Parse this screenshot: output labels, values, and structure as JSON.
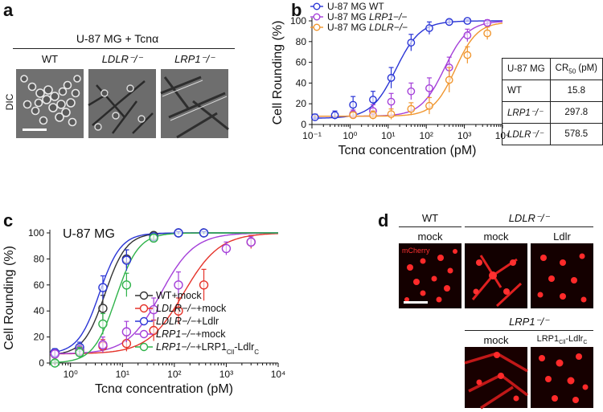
{
  "panel_a": {
    "letter": "a",
    "condition": "U-87 MG + Tcnα",
    "columns": [
      {
        "name": "WT",
        "italic": false
      },
      {
        "name": "LDLR⁻/⁻",
        "italic": true
      },
      {
        "name": "LRP1⁻/⁻",
        "italic": true
      }
    ],
    "row_label": "DIC"
  },
  "panel_b": {
    "letter": "b",
    "table": {
      "header": [
        "U-87 MG",
        "CR"
      ],
      "header_sub": "50",
      "header_unit": " (pM)",
      "rows": [
        [
          "WT",
          "15.8"
        ],
        [
          "LRP1⁻/⁻",
          "297.8"
        ],
        [
          "LDLR⁻/⁻",
          "578.5"
        ]
      ]
    }
  },
  "panel_c": {
    "letter": "c"
  },
  "panel_d": {
    "letter": "d",
    "group1_label": "WT",
    "group2_label": "LDLR⁻/⁻",
    "group3_label": "LRP1⁻/⁻",
    "top_columns": [
      "mock",
      "mock",
      "Ldlr"
    ],
    "bottom_columns": [
      "mock"
    ],
    "bottom_col2_main": "LRP1",
    "bottom_col2_sub1": "Cll",
    "bottom_col2_mid": "-Ldlr",
    "bottom_col2_sub2": "C",
    "overlay_label": "mCherry",
    "colors": {
      "fluor": "#ff2020",
      "background": "#120000"
    }
  },
  "chart_data": [
    {
      "type": "scatter",
      "panel": "b",
      "title": "",
      "xlabel": "Tcnα concentration (pM)",
      "ylabel": "Cell Rounding (%)",
      "xscale": "log",
      "xlim": [
        0.1,
        10000
      ],
      "ylim": [
        0,
        100
      ],
      "xticks": [
        "10⁻¹",
        "10⁰",
        "10¹",
        "10²",
        "10³",
        "10⁴"
      ],
      "yticks": [
        "0",
        "20",
        "40",
        "60",
        "80",
        "100"
      ],
      "legend_position": "top-left",
      "series": [
        {
          "name": "U-87 MG WT",
          "prefix": "U-87 MG ",
          "label": "WT",
          "italic": false,
          "color": "#2a35d6",
          "x": [
            0.12,
            0.4,
            1.2,
            4,
            12,
            40,
            120,
            400,
            1200
          ],
          "y": [
            7,
            9,
            19,
            24,
            45,
            79,
            93,
            99,
            100
          ],
          "err": [
            3,
            4,
            8,
            8,
            10,
            8,
            6,
            2,
            1
          ]
        },
        {
          "name": "U-87 MG LRP1−/−",
          "prefix": "U-87 MG ",
          "label": "LRP1−/−",
          "italic": true,
          "color": "#a43fd9",
          "x": [
            1.2,
            4,
            12,
            40,
            120,
            400,
            1200,
            4000
          ],
          "y": [
            10,
            13,
            22,
            32,
            35,
            55,
            86,
            98
          ],
          "err": [
            4,
            6,
            8,
            8,
            10,
            10,
            6,
            3
          ]
        },
        {
          "name": "U-87 MG LDLR−/−",
          "prefix": "U-87 MG ",
          "label": "LDLR−/−",
          "italic": true,
          "color": "#f0962f",
          "x": [
            1.2,
            4,
            12,
            40,
            120,
            400,
            1200,
            4000
          ],
          "y": [
            9,
            9,
            10,
            15,
            18,
            43,
            67,
            88
          ],
          "err": [
            3,
            4,
            5,
            6,
            8,
            12,
            8,
            6
          ]
        }
      ],
      "fits": [
        {
          "color": "#2a35d6",
          "ec50": 15.8,
          "bottom": 6,
          "top": 100,
          "hill": 1.35
        },
        {
          "color": "#a43fd9",
          "ec50": 297.8,
          "bottom": 8,
          "top": 100,
          "hill": 1.4
        },
        {
          "color": "#f0962f",
          "ec50": 578.5,
          "bottom": 8,
          "top": 99,
          "hill": 1.5
        }
      ]
    },
    {
      "type": "scatter",
      "panel": "c",
      "title": "U-87 MG",
      "xlabel": "Tcnα concentration (pM)",
      "ylabel": "Cell Rounding (%)",
      "xscale": "log",
      "xlim": [
        0.4,
        10000
      ],
      "ylim": [
        0,
        100
      ],
      "xticks": [
        "10⁰",
        "10¹",
        "10²",
        "10³",
        "10⁴"
      ],
      "yticks": [
        "0",
        "20",
        "40",
        "60",
        "80",
        "100"
      ],
      "legend_position": "bottom-right",
      "series": [
        {
          "name": "WT+mock",
          "color": "#333333",
          "parts": [
            {
              "t": "WT",
              "i": false
            },
            {
              "t": "+mock",
              "i": false
            }
          ],
          "x": [
            0.5,
            1.5,
            4.2,
            12,
            40,
            120,
            370
          ],
          "y": [
            8,
            10,
            42,
            80,
            98,
            100,
            100
          ],
          "err": [
            3,
            4,
            10,
            7,
            2,
            1,
            1
          ]
        },
        {
          "name": "LDLR−/−+mock",
          "color": "#e5332a",
          "parts": [
            {
              "t": "LDLR−/−",
              "i": true
            },
            {
              "t": "+mock",
              "i": false
            }
          ],
          "x": [
            0.5,
            1.5,
            4.2,
            12,
            40,
            120,
            370,
            3000
          ],
          "y": [
            7,
            9,
            13,
            15,
            25,
            40,
            60,
            93
          ],
          "err": [
            3,
            4,
            5,
            6,
            8,
            10,
            12,
            5
          ]
        },
        {
          "name": "LDLR−/−+Ldlr",
          "color": "#2a35d6",
          "parts": [
            {
              "t": "LDLR−/−",
              "i": true
            },
            {
              "t": "+Ldlr",
              "i": false
            }
          ],
          "x": [
            0.5,
            1.5,
            4.2,
            12,
            40,
            120,
            370
          ],
          "y": [
            8,
            12,
            58,
            79,
            97,
            100,
            100
          ],
          "err": [
            3,
            4,
            9,
            8,
            2,
            1,
            1
          ]
        },
        {
          "name": "LRP1−/−+mock",
          "color": "#a43fd9",
          "parts": [
            {
              "t": "LRP1−/−",
              "i": true
            },
            {
              "t": "+mock",
              "i": false
            }
          ],
          "x": [
            0.5,
            1.5,
            4.2,
            12,
            40,
            120,
            1000,
            3000
          ],
          "y": [
            7,
            9,
            14,
            24,
            41,
            60,
            88,
            93
          ],
          "err": [
            3,
            4,
            6,
            8,
            9,
            10,
            5,
            4
          ]
        },
        {
          "name": "LRP1−/−+LRP1Cll-LdlrC",
          "color": "#2fb34a",
          "parts": [
            {
              "t": "LRP1−/−",
              "i": true
            },
            {
              "t": "+LRP1",
              "i": false
            },
            {
              "t": "Cll",
              "i": false,
              "sub": true
            },
            {
              "t": "-Ldlr",
              "i": false
            },
            {
              "t": "C",
              "i": false,
              "sub": true
            }
          ],
          "x": [
            0.5,
            1.5,
            4.2,
            12,
            40
          ],
          "y": [
            0,
            8,
            30,
            60,
            96
          ],
          "err": [
            2,
            4,
            8,
            9,
            3
          ]
        }
      ],
      "fits": [
        {
          "color": "#333333",
          "ec50": 4.6,
          "bottom": 6,
          "top": 100,
          "hill": 2.1
        },
        {
          "color": "#e5332a",
          "ec50": 150,
          "bottom": 7,
          "top": 100,
          "hill": 1.25
        },
        {
          "color": "#2a35d6",
          "ec50": 3.6,
          "bottom": 7,
          "top": 100,
          "hill": 2.1
        },
        {
          "color": "#a43fd9",
          "ec50": 55,
          "bottom": 7,
          "top": 100,
          "hill": 1.35
        },
        {
          "color": "#2fb34a",
          "ec50": 7.5,
          "bottom": 0,
          "top": 100,
          "hill": 2.0
        }
      ]
    }
  ]
}
